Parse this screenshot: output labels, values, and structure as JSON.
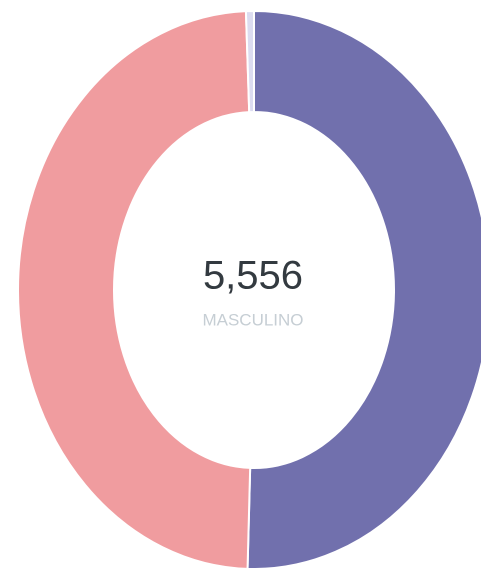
{
  "chart_data": {
    "type": "donut",
    "categories": [
      "MASCULINO",
      null,
      null
    ],
    "values": [
      5556,
      5400,
      60
    ],
    "value_labels": [
      "5,556",
      null,
      null
    ],
    "colors": [
      "#7170ad",
      "#f09c9f",
      "#dcdcf0"
    ]
  }
}
